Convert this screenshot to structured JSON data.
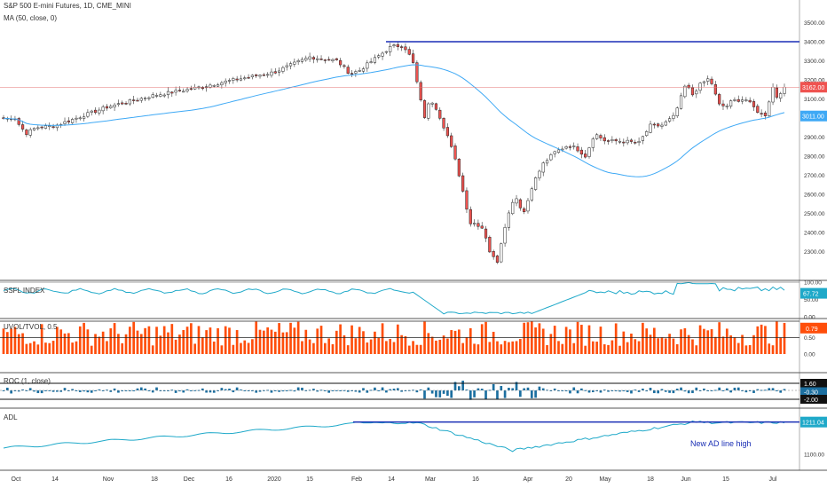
{
  "colors": {
    "up": "#26a69a",
    "down": "#ef5350",
    "ma": "#3fa9f5",
    "hline": "#1a2fb5",
    "cyan": "#1fa9c9",
    "orange": "#ff4e0a",
    "roc": "#1c6fa0",
    "text": "#333333"
  },
  "main": {
    "title": "S&P 500 E-mini Futures, 1D, CME_MINI",
    "subtitle": "MA (50, close, 0)",
    "price_label": "3162.00",
    "ma_label": "3011.00",
    "ymin": 2150,
    "ymax": 3600,
    "yticks": [
      "3500.00",
      "3400.00",
      "3300.00",
      "3200.00",
      "3100.00",
      "3000.00",
      "2900.00",
      "2800.00",
      "2700.00",
      "2600.00",
      "2500.00",
      "2400.00",
      "2300.00"
    ],
    "resistance": 3400
  },
  "ssfl": {
    "title": "SSFL INDEX",
    "label": "67.72",
    "yticks": [
      "100.00",
      "50.00",
      "0.00"
    ]
  },
  "uvol": {
    "title": "UVOL/TVOL, 0.5",
    "label": "0.79",
    "yticks": [
      "1.00",
      "0.50",
      "0.00"
    ]
  },
  "roc": {
    "title": "ROC (1, close)",
    "labels": [
      "1.60",
      "-0.30",
      "-2.00"
    ]
  },
  "adl": {
    "title": "ADL",
    "label": "1211.04",
    "ytick": "1100.00",
    "annotation": "New AD line high"
  },
  "xaxis": [
    "Oct",
    "14",
    "Nov",
    "18",
    "Dec",
    "16",
    "2020",
    "15",
    "Feb",
    "14",
    "Mar",
    "16",
    "Apr",
    "20",
    "May",
    "18",
    "Jun",
    "15",
    "Jul"
  ],
  "chart_data": {
    "type": "candlestick",
    "series_name": "S&P 500 E-mini Futures",
    "approx_close_path": [
      {
        "x": "Oct",
        "y": 3000
      },
      {
        "x": "14",
        "y": 2960
      },
      {
        "x": "Nov",
        "y": 3060
      },
      {
        "x": "18",
        "y": 3120
      },
      {
        "x": "Dec",
        "y": 3150
      },
      {
        "x": "16",
        "y": 3195
      },
      {
        "x": "2020",
        "y": 3240
      },
      {
        "x": "15",
        "y": 3320
      },
      {
        "x": "Feb",
        "y": 3245
      },
      {
        "x": "14",
        "y": 3375
      },
      {
        "x": "Mar",
        "y": 3100
      },
      {
        "x": "16",
        "y": 2450
      },
      {
        "x": "Apr",
        "y": 2570
      },
      {
        "x": "20",
        "y": 2860
      },
      {
        "x": "May",
        "y": 2880
      },
      {
        "x": "18",
        "y": 2960
      },
      {
        "x": "Jun",
        "y": 3180
      },
      {
        "x": "15",
        "y": 3060
      },
      {
        "x": "Jul",
        "y": 3162
      }
    ],
    "ma": "MA (50, close, 0)",
    "ylim": [
      2150,
      3600
    ]
  }
}
